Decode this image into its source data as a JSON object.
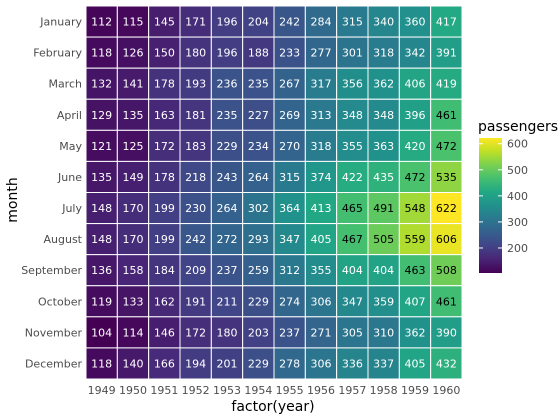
{
  "chart_data": {
    "type": "heatmap",
    "title": "",
    "xlabel": "factor(year)",
    "ylabel": "month",
    "x_categories": [
      "1949",
      "1950",
      "1951",
      "1952",
      "1953",
      "1954",
      "1955",
      "1956",
      "1957",
      "1958",
      "1959",
      "1960"
    ],
    "y_categories": [
      "January",
      "February",
      "March",
      "April",
      "May",
      "June",
      "July",
      "August",
      "September",
      "October",
      "November",
      "December"
    ],
    "values": [
      [
        112,
        115,
        145,
        171,
        196,
        204,
        242,
        284,
        315,
        340,
        360,
        417
      ],
      [
        118,
        126,
        150,
        180,
        196,
        188,
        233,
        277,
        301,
        318,
        342,
        391
      ],
      [
        132,
        141,
        178,
        193,
        236,
        235,
        267,
        317,
        356,
        362,
        406,
        419
      ],
      [
        129,
        135,
        163,
        181,
        235,
        227,
        269,
        313,
        348,
        348,
        396,
        461
      ],
      [
        121,
        125,
        172,
        183,
        229,
        234,
        270,
        318,
        355,
        363,
        420,
        472
      ],
      [
        135,
        149,
        178,
        218,
        243,
        264,
        315,
        374,
        422,
        435,
        472,
        535
      ],
      [
        148,
        170,
        199,
        230,
        264,
        302,
        364,
        413,
        465,
        491,
        548,
        622
      ],
      [
        148,
        170,
        199,
        242,
        272,
        293,
        347,
        405,
        467,
        505,
        559,
        606
      ],
      [
        136,
        158,
        184,
        209,
        237,
        259,
        312,
        355,
        404,
        404,
        463,
        508
      ],
      [
        119,
        133,
        162,
        191,
        211,
        229,
        274,
        306,
        347,
        359,
        407,
        461
      ],
      [
        104,
        114,
        146,
        172,
        180,
        203,
        237,
        271,
        305,
        310,
        362,
        390
      ],
      [
        118,
        140,
        166,
        194,
        201,
        229,
        278,
        306,
        336,
        337,
        405,
        432
      ]
    ],
    "color_scale": "viridis",
    "value_range": [
      104,
      622
    ],
    "legend": {
      "title": "passengers",
      "ticks": [
        200,
        300,
        400,
        500,
        600
      ],
      "tick_labels": [
        "200",
        "300",
        "400",
        "500",
        "600"
      ],
      "position": "right"
    },
    "cell_labels": true
  }
}
